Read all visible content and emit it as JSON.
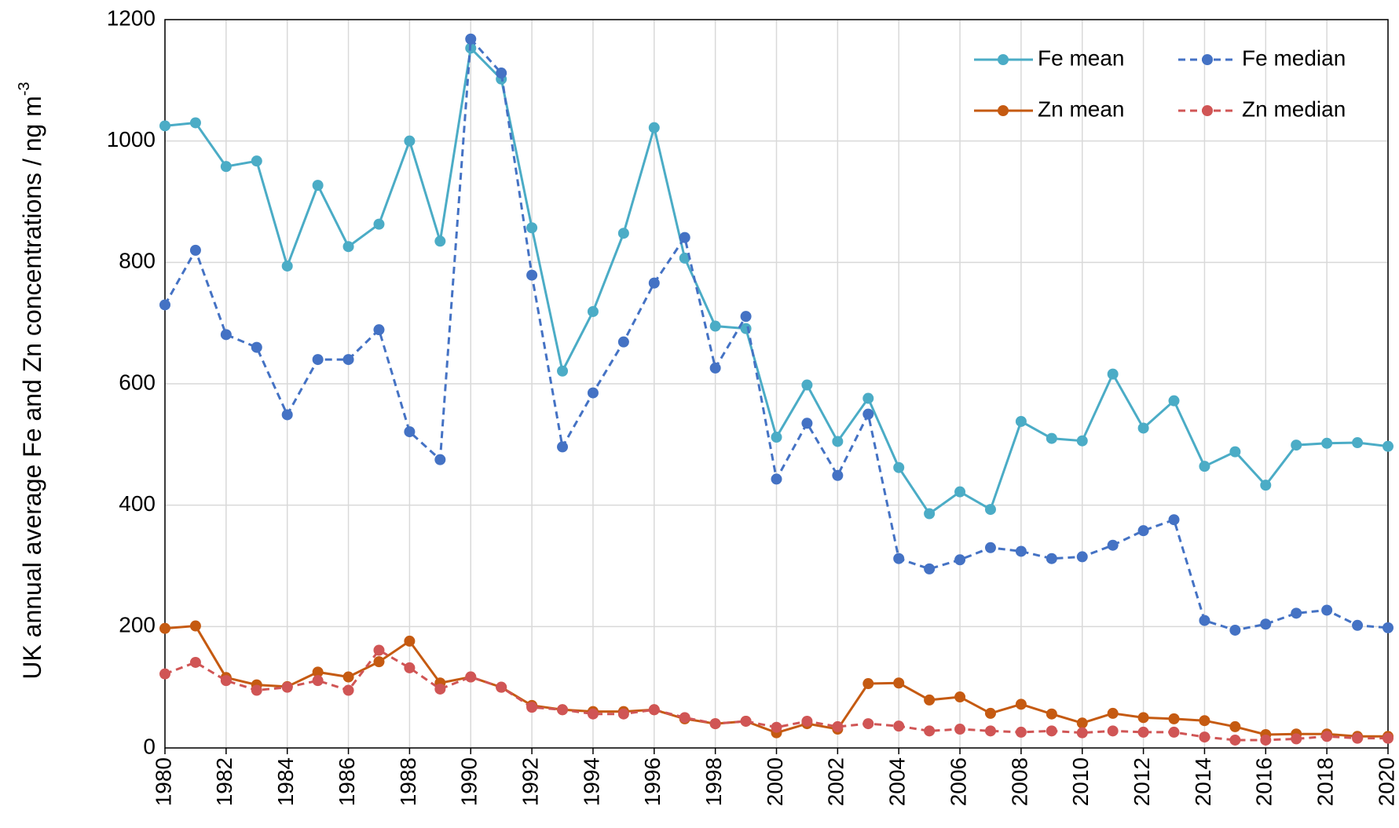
{
  "chart_data": {
    "type": "line",
    "ylabel": "UK annual average Fe and Zn concentrations / ng m",
    "ylabel_superscript": "-3",
    "x": [
      1980,
      1981,
      1982,
      1983,
      1984,
      1985,
      1986,
      1987,
      1988,
      1989,
      1990,
      1991,
      1992,
      1993,
      1994,
      1995,
      1996,
      1997,
      1998,
      1999,
      2000,
      2001,
      2002,
      2003,
      2004,
      2005,
      2006,
      2007,
      2008,
      2009,
      2010,
      2011,
      2012,
      2013,
      2014,
      2015,
      2016,
      2017,
      2018,
      2019,
      2020
    ],
    "xlim": [
      1980,
      2020
    ],
    "xticks": [
      1980,
      1982,
      1984,
      1986,
      1988,
      1990,
      1992,
      1994,
      1996,
      1998,
      2000,
      2002,
      2004,
      2006,
      2008,
      2010,
      2012,
      2014,
      2016,
      2018,
      2020
    ],
    "ylim": [
      0,
      1200
    ],
    "yticks": [
      0,
      200,
      400,
      600,
      800,
      1000,
      1200
    ],
    "grid": true,
    "legend": "upper right",
    "series": [
      {
        "name": "Fe mean",
        "color": "#4bacc6",
        "dashed": false,
        "values": [
          1025,
          1030,
          958,
          967,
          794,
          927,
          826,
          863,
          1000,
          835,
          1153,
          1102,
          857,
          621,
          719,
          848,
          1022,
          807,
          695,
          691,
          512,
          598,
          505,
          576,
          462,
          386,
          422,
          393,
          538,
          510,
          506,
          616,
          527,
          572,
          464,
          488,
          433,
          499,
          502,
          503,
          497
        ]
      },
      {
        "name": "Fe median",
        "color": "#4472c4",
        "dashed": true,
        "values": [
          730,
          820,
          681,
          660,
          549,
          640,
          640,
          689,
          521,
          475,
          1168,
          1112,
          779,
          496,
          585,
          669,
          766,
          841,
          626,
          711,
          443,
          535,
          449,
          550,
          312,
          295,
          310,
          330,
          324,
          312,
          315,
          334,
          358,
          376,
          210,
          194,
          204,
          222,
          227,
          202,
          198
        ]
      },
      {
        "name": "Zn mean",
        "color": "#c55a11",
        "dashed": false,
        "values": [
          197,
          201,
          116,
          104,
          101,
          125,
          117,
          142,
          176,
          107,
          117,
          100,
          70,
          63,
          60,
          60,
          63,
          48,
          40,
          44,
          25,
          40,
          31,
          106,
          107,
          79,
          84,
          57,
          72,
          56,
          41,
          57,
          50,
          48,
          45,
          35,
          22,
          23,
          23,
          19,
          19
        ]
      },
      {
        "name": "Zn median",
        "color": "#d05555",
        "dashed": true,
        "values": [
          122,
          141,
          111,
          95,
          100,
          111,
          95,
          161,
          132,
          97,
          117,
          100,
          67,
          63,
          56,
          56,
          63,
          50,
          40,
          44,
          34,
          44,
          35,
          40,
          36,
          28,
          31,
          28,
          26,
          28,
          25,
          28,
          26,
          26,
          18,
          13,
          13,
          15,
          19,
          16,
          16
        ]
      }
    ]
  }
}
